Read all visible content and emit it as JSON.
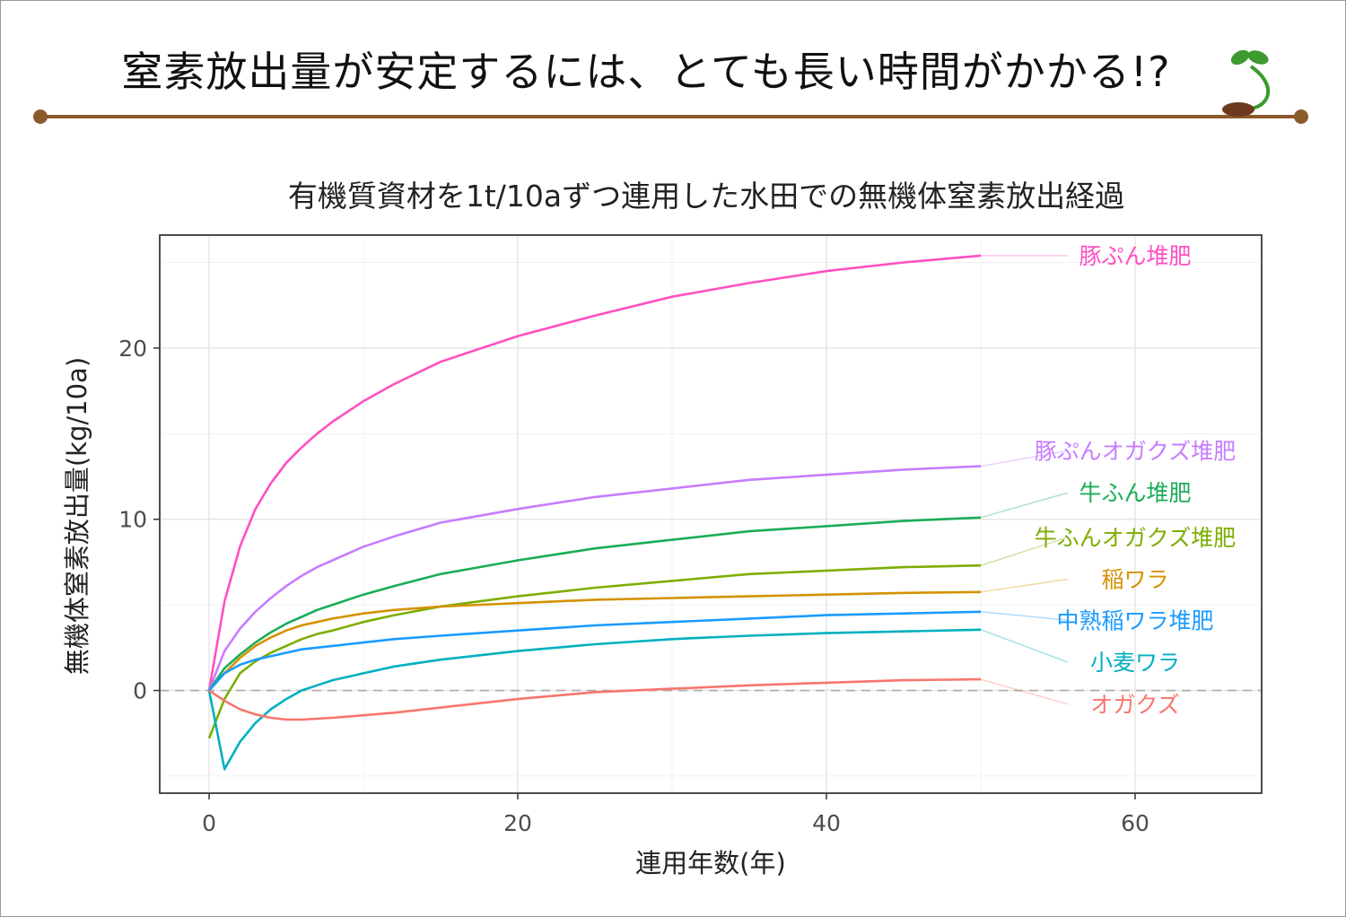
{
  "slide": {
    "title": "窒素放出量が安定するには、とても長い時間がかかる!?",
    "rule_color": "#8b5a2b",
    "sprout_colors": {
      "leaf": "#3c9a2e",
      "seed": "#6b3a1e"
    }
  },
  "chart_data": {
    "type": "line",
    "title": "有機質資材を1t/10aずつ連用した水田での無機体窒素放出経過",
    "xlabel": "連用年数(年)",
    "ylabel": "無機体窒素放出量(kg/10a)",
    "xlim": [
      -3.2,
      68.2
    ],
    "ylim": [
      -6.0,
      26.6
    ],
    "xticks": [
      0,
      20,
      40,
      60
    ],
    "yticks": [
      0,
      10,
      20
    ],
    "grid": true,
    "zero_reference": "dashed",
    "legend_placement": "direct labels at right of line ends",
    "x": [
      0,
      1,
      2,
      3,
      4,
      5,
      6,
      7,
      8,
      10,
      12,
      15,
      20,
      25,
      30,
      35,
      40,
      45,
      50
    ],
    "series": [
      {
        "name": "豚ぷん堆肥",
        "color": "#ff4fc2",
        "values": [
          0,
          5.2,
          8.4,
          10.6,
          12.1,
          13.3,
          14.2,
          15.0,
          15.7,
          16.9,
          17.9,
          19.2,
          20.7,
          21.9,
          23.0,
          23.8,
          24.5,
          25.0,
          25.4
        ]
      },
      {
        "name": "豚ぷんオガクズ堆肥",
        "color": "#c77cff",
        "values": [
          0,
          2.3,
          3.6,
          4.6,
          5.4,
          6.1,
          6.7,
          7.2,
          7.6,
          8.4,
          9.0,
          9.8,
          10.6,
          11.3,
          11.8,
          12.3,
          12.6,
          12.9,
          13.1
        ]
      },
      {
        "name": "牛ふん堆肥",
        "color": "#1aad57",
        "values": [
          0,
          1.3,
          2.1,
          2.8,
          3.4,
          3.9,
          4.3,
          4.7,
          5.0,
          5.6,
          6.1,
          6.8,
          7.6,
          8.3,
          8.8,
          9.3,
          9.6,
          9.9,
          10.1
        ]
      },
      {
        "name": "牛ふんオガクズ堆肥",
        "color": "#7cae00",
        "values": [
          -2.8,
          -0.5,
          1.0,
          1.7,
          2.2,
          2.6,
          3.0,
          3.3,
          3.5,
          4.0,
          4.4,
          4.9,
          5.5,
          6.0,
          6.4,
          6.8,
          7.0,
          7.2,
          7.3
        ]
      },
      {
        "name": "稲ワラ",
        "color": "#d39200",
        "values": [
          0,
          1.0,
          1.9,
          2.6,
          3.1,
          3.5,
          3.8,
          4.0,
          4.2,
          4.5,
          4.7,
          4.9,
          5.1,
          5.3,
          5.4,
          5.5,
          5.6,
          5.7,
          5.75
        ]
      },
      {
        "name": "中熟稲ワラ堆肥",
        "color": "#1a9bff",
        "values": [
          0,
          1.0,
          1.5,
          1.8,
          2.0,
          2.2,
          2.4,
          2.5,
          2.6,
          2.8,
          3.0,
          3.2,
          3.5,
          3.8,
          4.0,
          4.2,
          4.4,
          4.5,
          4.6
        ]
      },
      {
        "name": "小麦ワラ",
        "color": "#00b0c0",
        "values": [
          0,
          -4.6,
          -3.0,
          -1.9,
          -1.1,
          -0.5,
          0.0,
          0.3,
          0.6,
          1.0,
          1.4,
          1.8,
          2.3,
          2.7,
          3.0,
          3.2,
          3.35,
          3.45,
          3.55
        ]
      },
      {
        "name": "オガクズ",
        "color": "#f8766d",
        "values": [
          0,
          -0.6,
          -1.1,
          -1.4,
          -1.6,
          -1.7,
          -1.7,
          -1.65,
          -1.6,
          -1.45,
          -1.3,
          -1.0,
          -0.5,
          -0.1,
          0.1,
          0.3,
          0.45,
          0.6,
          0.65
        ]
      }
    ],
    "label_y": [
      25.4,
      14.0,
      11.55,
      8.95,
      6.5,
      4.1,
      1.65,
      -0.8
    ]
  }
}
